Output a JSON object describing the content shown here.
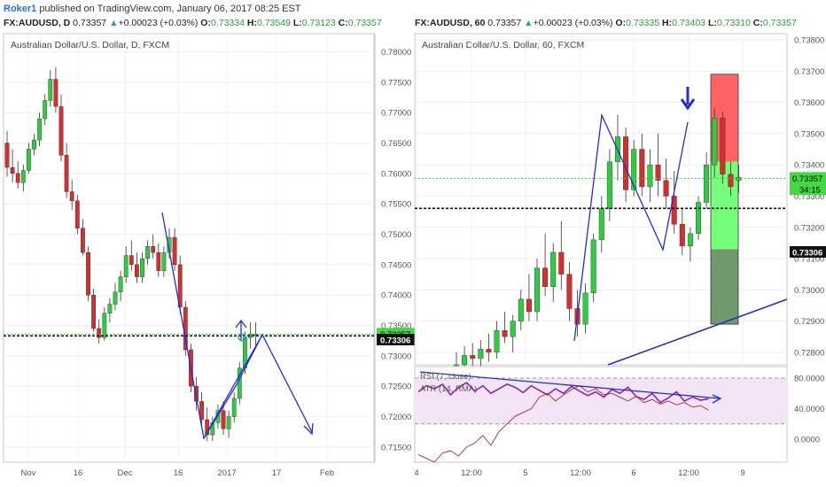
{
  "header": {
    "user": "Roker1",
    "published": "published on TradingView.com, January 06, 2017 08:25 EST"
  },
  "left": {
    "symbol_line": {
      "symbol": "FX:AUDUSD, D",
      "last": "0.73357",
      "change": "+0.00023 (+0.03%)",
      "O": "0.73334",
      "H": "0.73549",
      "L": "0.73123",
      "C": "0.73357"
    },
    "chart_title": "Australian Dollar/U.S. Dollar, D, FXCM",
    "price_labels": [
      "0.78000",
      "0.77500",
      "0.77000",
      "0.76500",
      "0.76000",
      "0.75500",
      "0.75000",
      "0.74500",
      "0.74000",
      "0.73500",
      "0.73000",
      "0.72500",
      "0.72000",
      "0.71500"
    ],
    "x_labels": [
      "Nov",
      "16",
      "Dec",
      "16",
      "2017",
      "17",
      "Feb"
    ],
    "last_price_tag": "0.73357",
    "level_tag": "0.73306"
  },
  "right": {
    "symbol_line": {
      "symbol": "FX:AUDUSD, 60",
      "last": "0.73357",
      "change": "+0.00023 (+0.03%)",
      "O": "0.73335",
      "H": "0.73403",
      "L": "0.73310",
      "C": "0.73357"
    },
    "chart_title": "Australian Dollar/U.S. Dollar, 60, FXCM",
    "price_labels": [
      "0.73800",
      "0.73700",
      "0.73600",
      "0.73500",
      "0.73400",
      "0.73300",
      "0.73200",
      "0.73100",
      "0.73000",
      "0.72900",
      "0.72800"
    ],
    "x_labels": [
      "4",
      "12:00",
      "5",
      "12:00",
      "6",
      "12:00",
      "9"
    ],
    "last_price_tag": "0.73357",
    "countdown_tag": "34:15",
    "level_tag": "0.73306",
    "indicator_labels": [
      "RSI (7, close)",
      "ATR (14, RMA)"
    ],
    "indicator_ticks": [
      "80.0000",
      "40.0000",
      "0.0000"
    ]
  },
  "colors": {
    "bull": "#2ecc40",
    "bear": "#d32f2f",
    "drawing": "#1f2fd0",
    "rsi": "#8e24aa",
    "atr": "#a52a2a",
    "stop": "#ff5252",
    "target": "#76ff7a",
    "target_dark": "#6e9a6e"
  },
  "chart_data": [
    {
      "type": "candlestick",
      "title": "Australian Dollar/U.S. Dollar, D, FXCM",
      "ylim": [
        0.7125,
        0.783
      ],
      "candles_ohlc": [
        [
          0.765,
          0.767,
          0.7595,
          0.761
        ],
        [
          0.761,
          0.764,
          0.7585,
          0.76
        ],
        [
          0.76,
          0.762,
          0.7575,
          0.7585
        ],
        [
          0.7585,
          0.7615,
          0.757,
          0.7605
        ],
        [
          0.7605,
          0.765,
          0.76,
          0.764
        ],
        [
          0.764,
          0.7665,
          0.763,
          0.7655
        ],
        [
          0.7655,
          0.77,
          0.7645,
          0.769
        ],
        [
          0.769,
          0.773,
          0.768,
          0.772
        ],
        [
          0.772,
          0.777,
          0.771,
          0.7755
        ],
        [
          0.7755,
          0.7775,
          0.77,
          0.771
        ],
        [
          0.771,
          0.773,
          0.762,
          0.763
        ],
        [
          0.763,
          0.765,
          0.756,
          0.757
        ],
        [
          0.757,
          0.759,
          0.754,
          0.7555
        ],
        [
          0.7555,
          0.7565,
          0.75,
          0.751
        ],
        [
          0.751,
          0.7525,
          0.7465,
          0.747
        ],
        [
          0.747,
          0.748,
          0.739,
          0.74
        ],
        [
          0.74,
          0.741,
          0.734,
          0.7345
        ],
        [
          0.7345,
          0.736,
          0.732,
          0.733
        ],
        [
          0.733,
          0.738,
          0.7325,
          0.737
        ],
        [
          0.737,
          0.7395,
          0.7355,
          0.7385
        ],
        [
          0.7385,
          0.742,
          0.7375,
          0.7405
        ],
        [
          0.7405,
          0.744,
          0.739,
          0.743
        ],
        [
          0.743,
          0.748,
          0.742,
          0.7465
        ],
        [
          0.7465,
          0.749,
          0.744,
          0.745
        ],
        [
          0.745,
          0.747,
          0.742,
          0.743
        ],
        [
          0.743,
          0.747,
          0.742,
          0.746
        ],
        [
          0.746,
          0.749,
          0.745,
          0.748
        ],
        [
          0.748,
          0.75,
          0.746,
          0.747
        ],
        [
          0.747,
          0.7485,
          0.743,
          0.744
        ],
        [
          0.744,
          0.748,
          0.743,
          0.747
        ],
        [
          0.747,
          0.751,
          0.746,
          0.7495
        ],
        [
          0.7495,
          0.751,
          0.744,
          0.745
        ],
        [
          0.745,
          0.7465,
          0.737,
          0.738
        ],
        [
          0.738,
          0.739,
          0.73,
          0.731
        ],
        [
          0.731,
          0.732,
          0.724,
          0.725
        ],
        [
          0.725,
          0.7265,
          0.721,
          0.7225
        ],
        [
          0.7225,
          0.724,
          0.7185,
          0.7195
        ],
        [
          0.7195,
          0.7215,
          0.716,
          0.717
        ],
        [
          0.717,
          0.72,
          0.716,
          0.719
        ],
        [
          0.719,
          0.722,
          0.718,
          0.721
        ],
        [
          0.721,
          0.7225,
          0.717,
          0.718
        ],
        [
          0.718,
          0.721,
          0.7165,
          0.72
        ],
        [
          0.72,
          0.724,
          0.719,
          0.723
        ],
        [
          0.723,
          0.729,
          0.722,
          0.728
        ],
        [
          0.728,
          0.734,
          0.727,
          0.733
        ],
        [
          0.733,
          0.7355,
          0.7312,
          0.7336
        ],
        [
          0.7334,
          0.7355,
          0.7312,
          0.7336
        ]
      ],
      "price_line": 0.73357,
      "horizontal_level": 0.73306
    },
    {
      "type": "candlestick",
      "title": "Australian Dollar/U.S. Dollar, 60, FXCM",
      "ylim": [
        0.7276,
        0.7382
      ],
      "candles_ohlc": [
        [
          0.7275,
          0.728,
          0.727,
          0.7276
        ],
        [
          0.7276,
          0.7282,
          0.7272,
          0.7279
        ],
        [
          0.7279,
          0.7283,
          0.7274,
          0.7278
        ],
        [
          0.7278,
          0.7284,
          0.7275,
          0.7281
        ],
        [
          0.7281,
          0.7286,
          0.7277,
          0.728
        ],
        [
          0.728,
          0.729,
          0.7278,
          0.7287
        ],
        [
          0.7287,
          0.7293,
          0.7283,
          0.7285
        ],
        [
          0.7285,
          0.7292,
          0.728,
          0.729
        ],
        [
          0.729,
          0.73,
          0.7287,
          0.7297
        ],
        [
          0.7297,
          0.7305,
          0.729,
          0.7293
        ],
        [
          0.7293,
          0.731,
          0.729,
          0.7307
        ],
        [
          0.7307,
          0.7318,
          0.7298,
          0.7301
        ],
        [
          0.7301,
          0.7315,
          0.7296,
          0.7312
        ],
        [
          0.7312,
          0.7322,
          0.73,
          0.7305
        ],
        [
          0.7305,
          0.7309,
          0.729,
          0.7294
        ],
        [
          0.7294,
          0.73,
          0.7285,
          0.7289
        ],
        [
          0.7289,
          0.7302,
          0.7286,
          0.7299
        ],
        [
          0.7299,
          0.7318,
          0.7296,
          0.7316
        ],
        [
          0.7316,
          0.733,
          0.7312,
          0.7326
        ],
        [
          0.7326,
          0.7345,
          0.7322,
          0.7341
        ],
        [
          0.7341,
          0.7356,
          0.7335,
          0.7349
        ],
        [
          0.7349,
          0.7352,
          0.7328,
          0.7332
        ],
        [
          0.7332,
          0.7348,
          0.733,
          0.7345
        ],
        [
          0.7345,
          0.735,
          0.733,
          0.7333
        ],
        [
          0.7333,
          0.7345,
          0.7328,
          0.734
        ],
        [
          0.734,
          0.735,
          0.733,
          0.7335
        ],
        [
          0.7335,
          0.7342,
          0.7326,
          0.733
        ],
        [
          0.733,
          0.7338,
          0.7318,
          0.7321
        ],
        [
          0.7321,
          0.7326,
          0.7311,
          0.7314
        ],
        [
          0.7314,
          0.732,
          0.7309,
          0.7318
        ],
        [
          0.7318,
          0.733,
          0.7316,
          0.7328
        ],
        [
          0.7328,
          0.7344,
          0.7326,
          0.734
        ],
        [
          0.734,
          0.7358,
          0.7336,
          0.7355
        ],
        [
          0.7355,
          0.7357,
          0.7334,
          0.7337
        ],
        [
          0.7337,
          0.7341,
          0.733,
          0.7333
        ],
        [
          0.7335,
          0.734,
          0.7331,
          0.7336
        ]
      ],
      "price_line": 0.73357,
      "horizontal_level": 0.73306,
      "position_tool": {
        "stop_top": 0.7369,
        "entry": 0.7341,
        "target_mid": 0.7313,
        "target_bottom": 0.7289
      },
      "indicators": {
        "rsi": [
          62,
          70,
          66,
          72,
          58,
          68,
          74,
          63,
          70,
          60,
          66,
          72,
          68,
          61,
          70,
          64,
          58,
          66,
          60,
          69,
          63,
          57,
          62,
          55,
          65,
          60,
          68,
          56,
          52,
          60,
          48,
          54,
          62,
          50,
          55,
          51,
          53
        ],
        "atr": [
          -20,
          -25,
          -30,
          -18,
          -15,
          -22,
          -10,
          -5,
          5,
          -8,
          10,
          20,
          30,
          35,
          40,
          55,
          60,
          50,
          58,
          65,
          70,
          62,
          66,
          58,
          60,
          55,
          50,
          56,
          48,
          52,
          46,
          50,
          45,
          48,
          42,
          44,
          38
        ],
        "ylim": [
          -30,
          95
        ]
      }
    }
  ]
}
